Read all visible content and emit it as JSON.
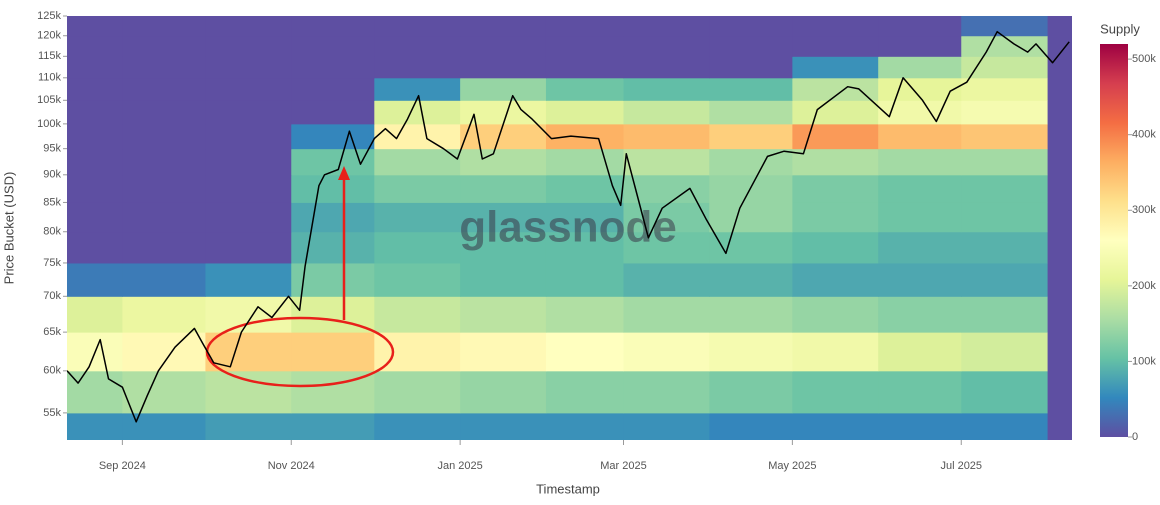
{
  "chart_data": {
    "type": "heatmap",
    "x_label": "Timestamp",
    "y_label": "Price Bucket (USD)",
    "watermark": "glassnode",
    "colorbar_title": "Supply",
    "log_y": true,
    "xlim": [
      "2024-08-12",
      "2025-08-10"
    ],
    "xticks": [
      {
        "value": "2024-09",
        "label": "Sep 2024"
      },
      {
        "value": "2024-11",
        "label": "Nov 2024"
      },
      {
        "value": "2025-01",
        "label": "Jan 2025"
      },
      {
        "value": "2025-03",
        "label": "Mar 2025"
      },
      {
        "value": "2025-05",
        "label": "May 2025"
      },
      {
        "value": "2025-07",
        "label": "Jul 2025"
      }
    ],
    "ylim": [
      52000,
      125000
    ],
    "yticks": [
      {
        "value": 55000,
        "label": "55k"
      },
      {
        "value": 60000,
        "label": "60k"
      },
      {
        "value": 65000,
        "label": "65k"
      },
      {
        "value": 70000,
        "label": "70k"
      },
      {
        "value": 75000,
        "label": "75k"
      },
      {
        "value": 80000,
        "label": "80k"
      },
      {
        "value": 85000,
        "label": "85k"
      },
      {
        "value": 90000,
        "label": "90k"
      },
      {
        "value": 95000,
        "label": "95k"
      },
      {
        "value": 100000,
        "label": "100k"
      },
      {
        "value": 105000,
        "label": "105k"
      },
      {
        "value": 110000,
        "label": "110k"
      },
      {
        "value": 115000,
        "label": "115k"
      },
      {
        "value": 120000,
        "label": "120k"
      },
      {
        "value": 125000,
        "label": "125k"
      }
    ],
    "x_bins": [
      "2024-08",
      "2024-09",
      "2024-10",
      "2024-11",
      "2024-12",
      "2025-01",
      "2025-02",
      "2025-03",
      "2025-04",
      "2025-05",
      "2025-06",
      "2025-07",
      "2025-08"
    ],
    "y_bins": [
      52000,
      55000,
      60000,
      65000,
      70000,
      75000,
      80000,
      85000,
      90000,
      95000,
      100000,
      105000,
      110000,
      115000,
      120000,
      125000
    ],
    "supply": [
      [
        60000,
        60000,
        70000,
        70000,
        60000,
        60000,
        60000,
        60000,
        50000,
        50000,
        50000,
        50000
      ],
      [
        150000,
        160000,
        170000,
        160000,
        150000,
        140000,
        130000,
        130000,
        120000,
        110000,
        110000,
        100000
      ],
      [
        250000,
        270000,
        330000,
        330000,
        280000,
        270000,
        260000,
        250000,
        240000,
        230000,
        200000,
        190000
      ],
      [
        200000,
        220000,
        230000,
        200000,
        180000,
        170000,
        160000,
        150000,
        150000,
        140000,
        130000,
        130000
      ],
      [
        40000,
        40000,
        60000,
        120000,
        110000,
        100000,
        100000,
        90000,
        90000,
        80000,
        80000,
        80000
      ],
      [
        0,
        0,
        0,
        90000,
        100000,
        100000,
        100000,
        110000,
        110000,
        100000,
        90000,
        90000
      ],
      [
        0,
        0,
        0,
        80000,
        90000,
        90000,
        90000,
        120000,
        140000,
        120000,
        110000,
        110000
      ],
      [
        0,
        0,
        0,
        100000,
        120000,
        120000,
        110000,
        130000,
        140000,
        120000,
        110000,
        110000
      ],
      [
        0,
        0,
        0,
        110000,
        150000,
        160000,
        150000,
        170000,
        150000,
        160000,
        150000,
        150000
      ],
      [
        0,
        0,
        0,
        50000,
        280000,
        330000,
        360000,
        350000,
        330000,
        380000,
        350000,
        340000
      ],
      [
        0,
        0,
        0,
        0,
        200000,
        220000,
        200000,
        180000,
        160000,
        200000,
        230000,
        240000
      ],
      [
        0,
        0,
        0,
        0,
        60000,
        140000,
        110000,
        100000,
        100000,
        170000,
        210000,
        220000
      ],
      [
        0,
        0,
        0,
        0,
        0,
        0,
        0,
        0,
        0,
        60000,
        150000,
        180000
      ],
      [
        0,
        0,
        0,
        0,
        0,
        0,
        0,
        0,
        0,
        0,
        0,
        160000
      ],
      [
        0,
        0,
        0,
        0,
        0,
        0,
        0,
        0,
        0,
        0,
        0,
        30000
      ]
    ],
    "colorscale": [
      "#5e4fa2",
      "#3288bd",
      "#66c2a5",
      "#abdda4",
      "#e6f598",
      "#ffffbf",
      "#fee08b",
      "#fdae61",
      "#f46d43",
      "#d53e4f",
      "#9e0142"
    ],
    "clim": [
      0,
      520000
    ],
    "cticks": [
      0,
      {
        "value": 100000,
        "label": "100k"
      },
      {
        "value": 200000,
        "label": "200k"
      },
      {
        "value": 300000,
        "label": "300k"
      },
      {
        "value": 400000,
        "label": "400k"
      },
      {
        "value": 500000,
        "label": "500k"
      }
    ],
    "series": [
      {
        "color": "#000000",
        "x": [
          "2024-08-12",
          "2024-08-16",
          "2024-08-20",
          "2024-08-24",
          "2024-08-27",
          "2024-09-01",
          "2024-09-06",
          "2024-09-10",
          "2024-09-14",
          "2024-09-20",
          "2024-09-27",
          "2024-09-30",
          "2024-10-04",
          "2024-10-10",
          "2024-10-14",
          "2024-10-20",
          "2024-10-25",
          "2024-10-31",
          "2024-11-04",
          "2024-11-06",
          "2024-11-11",
          "2024-11-13",
          "2024-11-18",
          "2024-11-22",
          "2024-11-26",
          "2024-12-01",
          "2024-12-05",
          "2024-12-09",
          "2024-12-13",
          "2024-12-17",
          "2024-12-20",
          "2024-12-26",
          "2024-12-31",
          "2025-01-06",
          "2025-01-09",
          "2025-01-13",
          "2025-01-20",
          "2025-01-23",
          "2025-01-27",
          "2025-02-03",
          "2025-02-10",
          "2025-02-20",
          "2025-02-25",
          "2025-02-28",
          "2025-03-02",
          "2025-03-10",
          "2025-03-15",
          "2025-03-25",
          "2025-03-31",
          "2025-04-07",
          "2025-04-12",
          "2025-04-22",
          "2025-04-28",
          "2025-05-05",
          "2025-05-10",
          "2025-05-21",
          "2025-05-25",
          "2025-06-05",
          "2025-06-10",
          "2025-06-17",
          "2025-06-22",
          "2025-06-27",
          "2025-07-03",
          "2025-07-10",
          "2025-07-14",
          "2025-07-20",
          "2025-07-25",
          "2025-07-28",
          "2025-08-03",
          "2025-08-09"
        ],
        "values": [
          60000,
          58500,
          60500,
          64000,
          59000,
          58000,
          54000,
          57000,
          60000,
          63000,
          65500,
          63500,
          61000,
          60500,
          65000,
          68500,
          67000,
          70000,
          68000,
          74500,
          88000,
          90000,
          91000,
          98500,
          92000,
          97000,
          99000,
          97000,
          101000,
          106000,
          97000,
          95000,
          93000,
          102000,
          93000,
          94000,
          106000,
          103000,
          101000,
          97000,
          97500,
          97000,
          88000,
          84500,
          94000,
          79000,
          84000,
          87500,
          82000,
          76500,
          84000,
          93500,
          94500,
          94000,
          103000,
          108000,
          107500,
          101500,
          110000,
          105000,
          100500,
          107000,
          109000,
          116000,
          121000,
          118000,
          116000,
          118000,
          113500,
          118500
        ]
      }
    ]
  }
}
